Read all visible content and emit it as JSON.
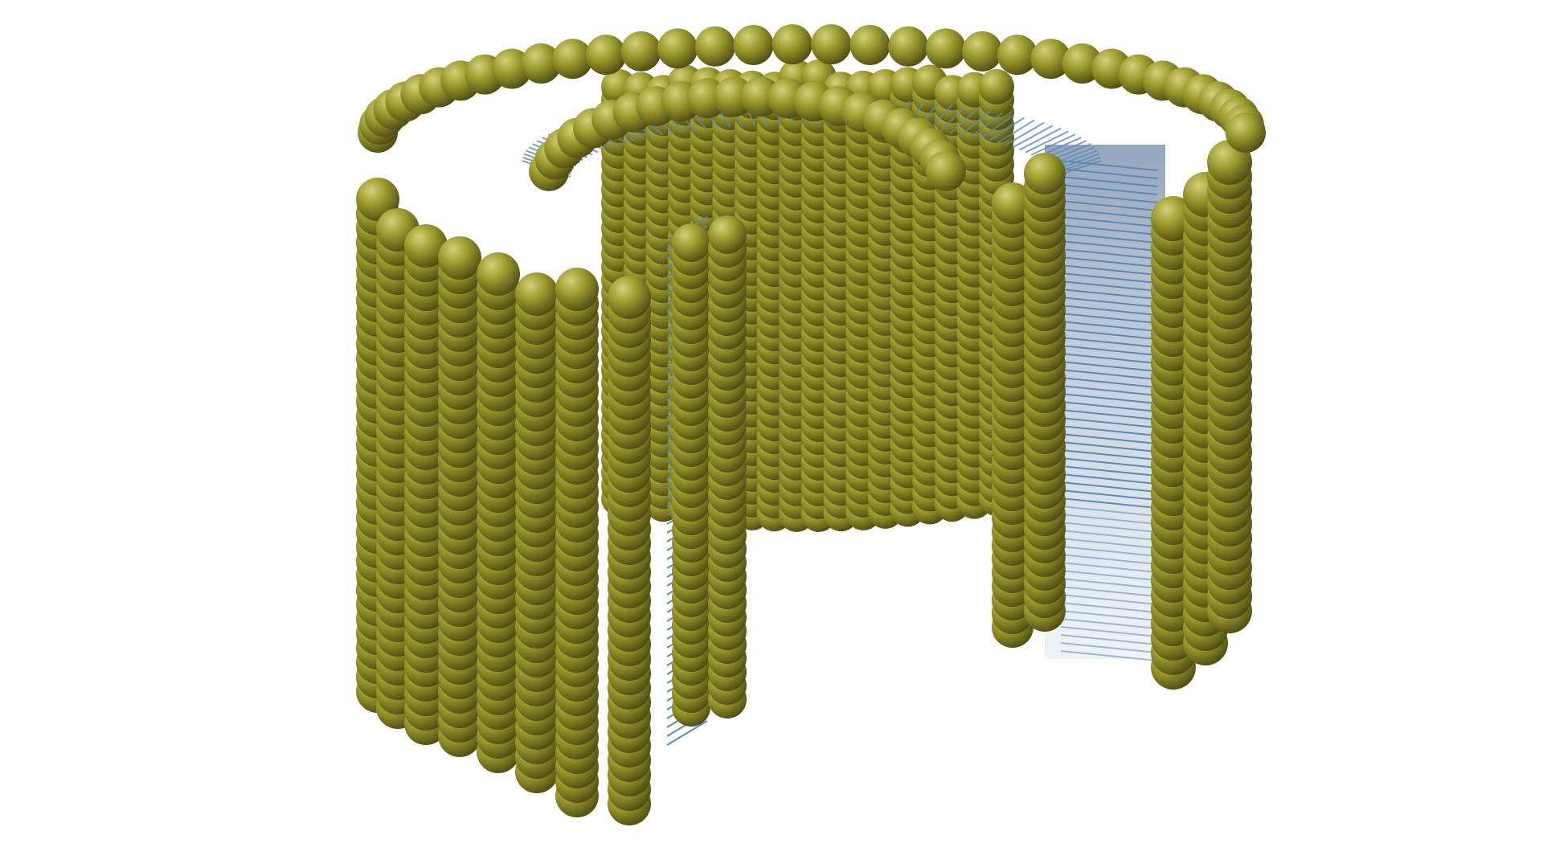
{
  "colors": {
    "background": "#ffffff",
    "head_highlight": "#d4d07a",
    "head_mid": "#9a9a2c",
    "head_shadow": "#4d4a12",
    "tail": "#5d88b4",
    "tail_dark": "#2f4f74"
  },
  "structure": {
    "subject": "lipid-bilayer-tube-with-open-cutaway",
    "head_group_shape": "sphere",
    "tail_shape": "line"
  }
}
